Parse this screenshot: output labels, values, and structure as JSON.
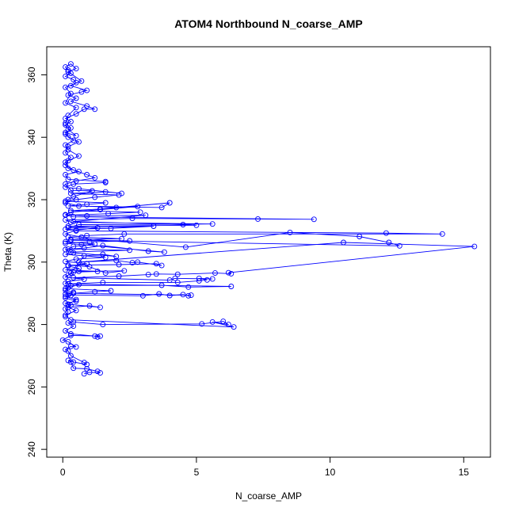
{
  "chart_data": {
    "type": "line",
    "markers": "open-circle",
    "title": "ATOM4 Northbound N_coarse_AMP",
    "xlabel": "N_coarse_AMP",
    "ylabel": "Theta (K)",
    "xlim": [
      -0.6,
      16.0
    ],
    "ylim": [
      237.5,
      369.0
    ],
    "xticks": [
      0,
      5,
      10,
      15
    ],
    "yticks": [
      240,
      260,
      280,
      300,
      320,
      340,
      360
    ],
    "grid": false,
    "series": [
      {
        "color": "#0000ff",
        "points": [
          [
            0.8,
            264.2
          ],
          [
            1.0,
            264.7
          ],
          [
            1.4,
            264.5
          ],
          [
            1.3,
            265.0
          ],
          [
            0.9,
            265.8
          ],
          [
            0.4,
            266.0
          ],
          [
            0.3,
            268.0
          ],
          [
            0.2,
            268.5
          ],
          [
            0.4,
            268.0
          ],
          [
            0.9,
            267.2
          ],
          [
            0.8,
            267.8
          ],
          [
            0.3,
            270.0
          ],
          [
            0.2,
            271.5
          ],
          [
            0.1,
            272.0
          ],
          [
            0.3,
            273.0
          ],
          [
            0.5,
            272.8
          ],
          [
            0.2,
            274.5
          ],
          [
            0.0,
            275.0
          ],
          [
            0.3,
            276.5
          ],
          [
            1.4,
            276.3
          ],
          [
            1.3,
            276.0
          ],
          [
            1.2,
            276.3
          ],
          [
            0.3,
            277.0
          ],
          [
            0.1,
            278.0
          ],
          [
            0.4,
            279.5
          ],
          [
            0.2,
            280.5
          ],
          [
            0.4,
            280.8
          ],
          [
            1.5,
            280.0
          ],
          [
            5.2,
            280.2
          ],
          [
            6.0,
            281.0
          ],
          [
            6.2,
            280.0
          ],
          [
            5.6,
            280.8
          ],
          [
            6.4,
            279.2
          ],
          [
            0.3,
            281.5
          ],
          [
            0.1,
            283.0
          ],
          [
            0.5,
            284.5
          ],
          [
            0.2,
            285.5
          ],
          [
            1.0,
            286.0
          ],
          [
            1.4,
            285.5
          ],
          [
            0.2,
            286.5
          ],
          [
            0.5,
            288.0
          ],
          [
            0.1,
            289.0
          ],
          [
            0.2,
            289.5
          ],
          [
            3.0,
            289.2
          ],
          [
            3.6,
            289.8
          ],
          [
            4.0,
            289.3
          ],
          [
            4.5,
            289.6
          ],
          [
            4.7,
            289.2
          ],
          [
            4.8,
            289.4
          ],
          [
            0.4,
            290.0
          ],
          [
            1.2,
            290.5
          ],
          [
            1.8,
            290.8
          ],
          [
            0.1,
            291.5
          ],
          [
            0.3,
            292.5
          ],
          [
            3.7,
            292.6
          ],
          [
            4.7,
            292.0
          ],
          [
            6.3,
            292.2
          ],
          [
            0.2,
            293.0
          ],
          [
            1.5,
            293.5
          ],
          [
            4.3,
            293.5
          ],
          [
            5.1,
            294.0
          ],
          [
            5.4,
            294.3
          ],
          [
            5.1,
            294.8
          ],
          [
            5.6,
            294.6
          ],
          [
            4.2,
            294.8
          ],
          [
            4.0,
            294.2
          ],
          [
            0.4,
            295.0
          ],
          [
            2.1,
            295.5
          ],
          [
            3.2,
            296.0
          ],
          [
            3.5,
            296.2
          ],
          [
            4.3,
            296.1
          ],
          [
            5.7,
            296.5
          ],
          [
            6.3,
            296.3
          ],
          [
            6.2,
            296.6
          ],
          [
            15.4,
            305.0
          ],
          [
            10.5,
            306.3
          ],
          [
            0.6,
            300.0
          ],
          [
            2.0,
            300.5
          ],
          [
            2.6,
            299.8
          ],
          [
            2.8,
            300.0
          ],
          [
            3.7,
            298.9
          ],
          [
            3.5,
            299.5
          ],
          [
            2.1,
            299.2
          ],
          [
            0.2,
            299.0
          ],
          [
            1.0,
            298.5
          ],
          [
            1.6,
            296.5
          ],
          [
            2.3,
            297.2
          ],
          [
            0.6,
            297.0
          ],
          [
            0.3,
            296.5
          ],
          [
            0.8,
            302.0
          ],
          [
            1.5,
            302.5
          ],
          [
            2.0,
            301.8
          ],
          [
            0.4,
            303.0
          ],
          [
            0.1,
            304.0
          ],
          [
            0.8,
            304.5
          ],
          [
            1.5,
            305.3
          ],
          [
            3.2,
            303.5
          ],
          [
            3.8,
            303.2
          ],
          [
            0.7,
            305.6
          ],
          [
            0.1,
            306.0
          ],
          [
            1.0,
            306.5
          ],
          [
            2.5,
            306.8
          ],
          [
            0.3,
            307.0
          ],
          [
            12.6,
            305.2
          ],
          [
            12.2,
            306.3
          ],
          [
            11.1,
            308.2
          ],
          [
            8.5,
            309.5
          ],
          [
            4.6,
            304.8
          ],
          [
            0.2,
            308.0
          ],
          [
            0.9,
            308.5
          ],
          [
            2.3,
            309.0
          ],
          [
            14.2,
            309.0
          ],
          [
            12.1,
            309.3
          ],
          [
            0.5,
            310.0
          ],
          [
            0.1,
            310.5
          ],
          [
            1.8,
            310.8
          ],
          [
            3.4,
            311.5
          ],
          [
            0.2,
            311.0
          ],
          [
            0.6,
            312.0
          ],
          [
            5.6,
            312.2
          ],
          [
            0.3,
            312.8
          ],
          [
            0.1,
            313.5
          ],
          [
            2.6,
            314.0
          ],
          [
            7.3,
            313.8
          ],
          [
            9.4,
            313.7
          ],
          [
            0.4,
            314.5
          ],
          [
            0.1,
            315.0
          ],
          [
            1.7,
            315.5
          ],
          [
            2.9,
            316.0
          ],
          [
            0.3,
            316.5
          ],
          [
            1.4,
            317.0
          ],
          [
            4.0,
            319.0
          ],
          [
            3.7,
            317.5
          ],
          [
            0.2,
            318.0
          ],
          [
            0.9,
            318.5
          ],
          [
            1.6,
            319.0
          ],
          [
            0.1,
            319.5
          ],
          [
            0.5,
            320.0
          ],
          [
            1.2,
            320.8
          ],
          [
            2.1,
            321.5
          ],
          [
            0.3,
            322.0
          ],
          [
            1.6,
            322.5
          ],
          [
            2.2,
            322.0
          ],
          [
            0.6,
            323.5
          ],
          [
            0.1,
            324.0
          ],
          [
            0.4,
            325.0
          ],
          [
            1.6,
            325.5
          ],
          [
            1.6,
            325.8
          ],
          [
            0.2,
            326.5
          ],
          [
            0.1,
            328.0
          ],
          [
            0.6,
            329.0
          ],
          [
            0.2,
            330.0
          ],
          [
            0.1,
            332.0
          ],
          [
            0.3,
            333.5
          ],
          [
            0.1,
            335.0
          ],
          [
            0.2,
            337.0
          ],
          [
            0.6,
            338.5
          ],
          [
            0.2,
            340.0
          ],
          [
            0.1,
            341.5
          ],
          [
            0.5,
            340.5
          ],
          [
            0.2,
            342.5
          ],
          [
            0.1,
            344.0
          ],
          [
            0.3,
            345.0
          ],
          [
            0.1,
            346.0
          ],
          [
            0.5,
            347.5
          ],
          [
            0.8,
            349.0
          ],
          [
            1.2,
            349.0
          ],
          [
            0.9,
            350.0
          ],
          [
            0.3,
            351.5
          ],
          [
            0.5,
            352.5
          ],
          [
            0.2,
            353.5
          ],
          [
            0.7,
            354.5
          ],
          [
            0.9,
            355.0
          ],
          [
            0.3,
            356.5
          ],
          [
            0.5,
            357.5
          ],
          [
            0.4,
            358.5
          ],
          [
            0.1,
            359.5
          ],
          [
            0.3,
            360.5
          ],
          [
            0.2,
            361.5
          ],
          [
            0.1,
            362.5
          ],
          [
            0.3,
            363.5
          ],
          [
            0.5,
            362.0
          ],
          [
            0.2,
            361.0
          ],
          [
            0.7,
            358.0
          ],
          [
            0.1,
            356.0
          ],
          [
            0.3,
            354.0
          ],
          [
            0.1,
            351.0
          ],
          [
            0.5,
            349.5
          ],
          [
            0.2,
            347.0
          ],
          [
            0.1,
            344.5
          ],
          [
            0.3,
            343.0
          ],
          [
            0.1,
            341.0
          ],
          [
            0.4,
            339.0
          ],
          [
            0.1,
            337.5
          ],
          [
            0.2,
            336.0
          ],
          [
            0.6,
            334.0
          ],
          [
            0.2,
            332.5
          ],
          [
            0.1,
            331.0
          ],
          [
            0.4,
            329.5
          ],
          [
            0.9,
            328.0
          ],
          [
            1.2,
            327.0
          ],
          [
            0.5,
            326.0
          ],
          [
            0.1,
            325.0
          ],
          [
            0.3,
            323.0
          ],
          [
            1.1,
            322.8
          ],
          [
            0.4,
            321.0
          ],
          [
            0.2,
            320.0
          ],
          [
            0.1,
            319.0
          ],
          [
            0.6,
            318.0
          ],
          [
            2.0,
            317.5
          ],
          [
            2.8,
            317.8
          ],
          [
            1.4,
            316.8
          ],
          [
            0.3,
            316.0
          ],
          [
            0.1,
            315.2
          ],
          [
            0.9,
            314.8
          ],
          [
            3.1,
            315.0
          ],
          [
            0.4,
            313.0
          ],
          [
            4.5,
            312.0
          ],
          [
            5.0,
            311.8
          ],
          [
            0.2,
            311.5
          ],
          [
            1.3,
            311.0
          ],
          [
            0.5,
            310.2
          ],
          [
            0.1,
            309.0
          ],
          [
            0.7,
            308.0
          ],
          [
            2.2,
            307.5
          ],
          [
            0.3,
            307.2
          ],
          [
            0.1,
            306.5
          ],
          [
            1.2,
            305.8
          ],
          [
            0.4,
            305.0
          ],
          [
            0.2,
            304.2
          ],
          [
            2.5,
            303.8
          ],
          [
            0.3,
            303.2
          ],
          [
            0.1,
            302.5
          ],
          [
            1.6,
            301.5
          ],
          [
            0.5,
            301.0
          ],
          [
            0.1,
            300.2
          ],
          [
            0.9,
            299.5
          ],
          [
            0.2,
            298.7
          ],
          [
            0.6,
            298.0
          ],
          [
            0.1,
            297.5
          ],
          [
            1.3,
            297.0
          ],
          [
            0.4,
            296.8
          ],
          [
            0.2,
            295.8
          ],
          [
            0.1,
            295.2
          ],
          [
            0.8,
            294.5
          ],
          [
            0.2,
            293.8
          ],
          [
            0.1,
            293.2
          ],
          [
            0.6,
            292.8
          ],
          [
            0.2,
            291.8
          ],
          [
            0.1,
            291.0
          ],
          [
            0.4,
            290.3
          ],
          [
            0.1,
            289.8
          ],
          [
            0.3,
            289.3
          ],
          [
            0.1,
            288.5
          ],
          [
            0.5,
            287.5
          ],
          [
            0.1,
            286.8
          ],
          [
            0.3,
            286.2
          ],
          [
            0.1,
            285.0
          ],
          [
            0.2,
            284.0
          ],
          [
            0.1,
            282.5
          ]
        ]
      }
    ]
  }
}
